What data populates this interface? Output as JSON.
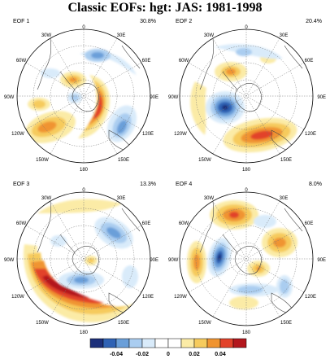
{
  "title": "Classic EOFs: hgt: JAS: 1981-1998",
  "palette": {
    "neg": [
      "#1c2f7a",
      "#2f62b4",
      "#6a9fd9",
      "#aacdf0",
      "#d9ebfa"
    ],
    "pos": [
      "#fbeba6",
      "#f6cb5d",
      "#f09430",
      "#e2422a",
      "#b3171d"
    ],
    "coast": "#444444",
    "grid": "#777777"
  },
  "colorbar": {
    "tick_labels": [
      "-0.04",
      "-0.02",
      "0",
      "0.02",
      "0.04"
    ]
  },
  "panels": [
    {
      "name": "EOF 1",
      "percent": "30.8%",
      "lon_labels": {
        "0": "0",
        "30W": "30W",
        "30E": "30E",
        "60W": "60W",
        "60E": "60E",
        "90W": "90W",
        "90E": "90E",
        "120W": "120W",
        "120E": "120E",
        "150W": "150W",
        "150E": "150E",
        "180": "180"
      }
    },
    {
      "name": "EOF 2",
      "percent": "20.4%",
      "lon_labels": {
        "0": "0",
        "30W": "30W",
        "30E": "30E",
        "60W": "60W",
        "60E": "60E",
        "90W": "90W",
        "90E": "90E",
        "120W": "120W",
        "120E": "120E",
        "150W": "150W",
        "150E": "150E",
        "180": "180"
      }
    },
    {
      "name": "EOF 3",
      "percent": "13.3%",
      "lon_labels": {
        "0": "0",
        "30W": "30W",
        "30E": "30E",
        "60W": "60W",
        "60E": "60E",
        "90W": "90W",
        "90E": "90E",
        "120W": "120W",
        "120E": "120E",
        "150W": "150W",
        "150E": "150E",
        "180": "180"
      }
    },
    {
      "name": "EOF 4",
      "percent": "8.0%",
      "lon_labels": {
        "0": "0",
        "30W": "30W",
        "30E": "30E",
        "60W": "60W",
        "60E": "60E",
        "90W": "90W",
        "90E": "90E",
        "120W": "120W",
        "120E": "120E",
        "150W": "150W",
        "150E": "150E",
        "180": "180"
      }
    }
  ]
}
